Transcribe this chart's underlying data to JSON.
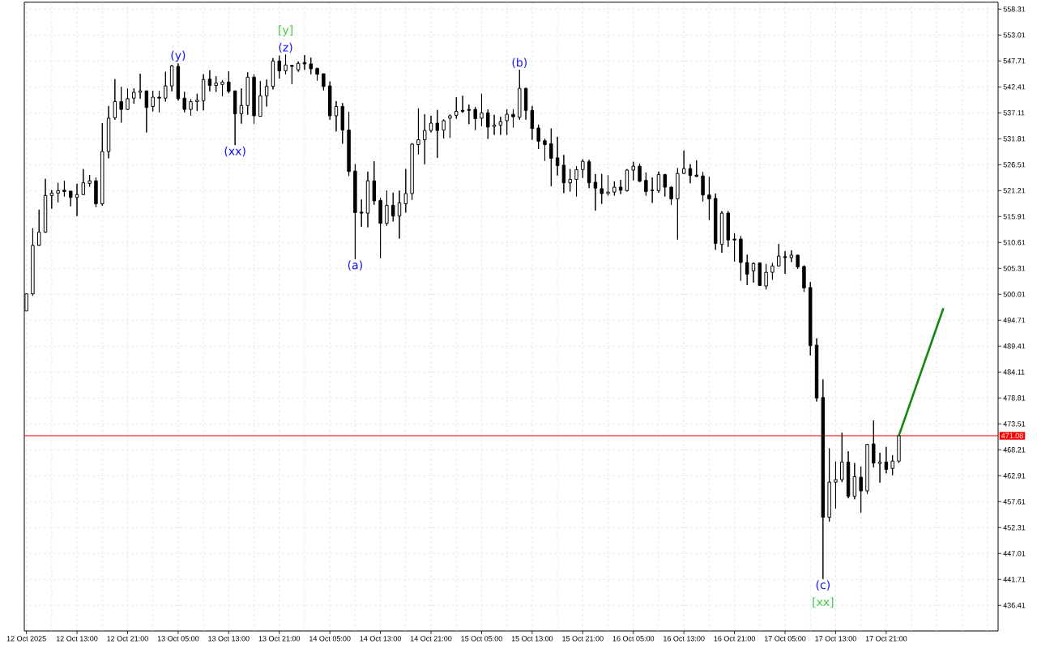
{
  "chart_data": {
    "type": "candlestick",
    "x": [
      "2025-10-12T05:00",
      "2025-10-12T06:00",
      "2025-10-12T07:00",
      "2025-10-12T08:00",
      "2025-10-12T09:00",
      "2025-10-12T10:00",
      "2025-10-12T11:00",
      "2025-10-12T12:00",
      "2025-10-12T13:00",
      "2025-10-12T14:00",
      "2025-10-12T15:00",
      "2025-10-12T16:00",
      "2025-10-12T17:00",
      "2025-10-12T18:00",
      "2025-10-12T19:00",
      "2025-10-12T20:00",
      "2025-10-12T21:00",
      "2025-10-12T22:00",
      "2025-10-12T23:00",
      "2025-10-13T00:00",
      "2025-10-13T01:00",
      "2025-10-13T02:00",
      "2025-10-13T03:00",
      "2025-10-13T04:00",
      "2025-10-13T05:00",
      "2025-10-13T06:00",
      "2025-10-13T07:00",
      "2025-10-13T08:00",
      "2025-10-13T09:00",
      "2025-10-13T10:00",
      "2025-10-13T11:00",
      "2025-10-13T12:00",
      "2025-10-13T13:00",
      "2025-10-13T14:00",
      "2025-10-13T15:00",
      "2025-10-13T16:00",
      "2025-10-13T17:00",
      "2025-10-13T18:00",
      "2025-10-13T19:00",
      "2025-10-13T20:00",
      "2025-10-13T21:00",
      "2025-10-13T22:00",
      "2025-10-13T23:00",
      "2025-10-14T00:00",
      "2025-10-14T01:00",
      "2025-10-14T02:00",
      "2025-10-14T03:00",
      "2025-10-14T04:00",
      "2025-10-14T05:00",
      "2025-10-14T06:00",
      "2025-10-14T07:00",
      "2025-10-14T08:00",
      "2025-10-14T09:00",
      "2025-10-14T10:00",
      "2025-10-14T11:00",
      "2025-10-14T12:00",
      "2025-10-14T13:00",
      "2025-10-14T14:00",
      "2025-10-14T15:00",
      "2025-10-14T16:00",
      "2025-10-14T17:00",
      "2025-10-14T18:00",
      "2025-10-14T19:00",
      "2025-10-14T20:00",
      "2025-10-14T21:00",
      "2025-10-14T22:00",
      "2025-10-14T23:00",
      "2025-10-15T00:00",
      "2025-10-15T01:00",
      "2025-10-15T02:00",
      "2025-10-15T03:00",
      "2025-10-15T04:00",
      "2025-10-15T05:00",
      "2025-10-15T06:00",
      "2025-10-15T07:00",
      "2025-10-15T08:00",
      "2025-10-15T09:00",
      "2025-10-15T10:00",
      "2025-10-15T11:00",
      "2025-10-15T12:00",
      "2025-10-15T13:00",
      "2025-10-15T14:00",
      "2025-10-15T15:00",
      "2025-10-15T16:00",
      "2025-10-15T17:00",
      "2025-10-15T18:00",
      "2025-10-15T19:00",
      "2025-10-15T20:00",
      "2025-10-15T21:00",
      "2025-10-15T22:00",
      "2025-10-15T23:00",
      "2025-10-16T00:00",
      "2025-10-16T01:00",
      "2025-10-16T02:00",
      "2025-10-16T03:00",
      "2025-10-16T04:00",
      "2025-10-16T05:00",
      "2025-10-16T06:00",
      "2025-10-16T07:00",
      "2025-10-16T08:00",
      "2025-10-16T09:00",
      "2025-10-16T10:00",
      "2025-10-16T11:00",
      "2025-10-16T12:00",
      "2025-10-16T13:00",
      "2025-10-16T14:00",
      "2025-10-16T15:00",
      "2025-10-16T16:00",
      "2025-10-16T17:00",
      "2025-10-16T18:00",
      "2025-10-16T19:00",
      "2025-10-16T20:00",
      "2025-10-16T21:00",
      "2025-10-16T22:00",
      "2025-10-16T23:00",
      "2025-10-17T00:00",
      "2025-10-17T01:00",
      "2025-10-17T02:00",
      "2025-10-17T03:00",
      "2025-10-17T04:00",
      "2025-10-17T05:00",
      "2025-10-17T06:00",
      "2025-10-17T07:00",
      "2025-10-17T08:00",
      "2025-10-17T09:00",
      "2025-10-17T10:00",
      "2025-10-17T11:00",
      "2025-10-17T12:00",
      "2025-10-17T13:00",
      "2025-10-17T14:00",
      "2025-10-17T15:00",
      "2025-10-17T16:00",
      "2025-10-17T17:00",
      "2025-10-17T18:00",
      "2025-10-17T19:00",
      "2025-10-17T20:00",
      "2025-10-17T21:00",
      "2025-10-17T22:00",
      "2025-10-17T23:00"
    ],
    "ohlc": [
      [
        496.6,
        500.1,
        496.6,
        500.1
      ],
      [
        500.1,
        513.5,
        499.7,
        510.0
      ],
      [
        510.0,
        517.3,
        509.9,
        512.7
      ],
      [
        512.7,
        523.6,
        512.6,
        520.2
      ],
      [
        520.2,
        521.3,
        517.5,
        520.7
      ],
      [
        520.7,
        522.8,
        518.8,
        521.2
      ],
      [
        521.3,
        523.2,
        520.0,
        521.0
      ],
      [
        521.1,
        521.1,
        518.0,
        519.8
      ],
      [
        519.8,
        522.6,
        516.0,
        520.4
      ],
      [
        520.4,
        525.6,
        520.3,
        522.8
      ],
      [
        522.7,
        524.4,
        522.0,
        523.2
      ],
      [
        523.2,
        523.9,
        517.8,
        518.5
      ],
      [
        518.5,
        535.0,
        518.1,
        529.2
      ],
      [
        529.2,
        538.5,
        527.8,
        536.0
      ],
      [
        536.1,
        544.0,
        535.7,
        539.4
      ],
      [
        539.4,
        542.4,
        535.1,
        537.8
      ],
      [
        537.8,
        542.1,
        537.7,
        540.0
      ],
      [
        540.1,
        542.1,
        539.0,
        541.3
      ],
      [
        541.3,
        545.1,
        540.0,
        541.6
      ],
      [
        541.6,
        541.6,
        533.1,
        538.2
      ],
      [
        538.4,
        541.6,
        537.4,
        540.3
      ],
      [
        540.3,
        541.6,
        537.2,
        540.1
      ],
      [
        540.1,
        545.5,
        539.4,
        542.6
      ],
      [
        542.6,
        546.9,
        541.5,
        546.7
      ],
      [
        546.6,
        547.2,
        539.6,
        540.0
      ],
      [
        540.1,
        541.4,
        537.2,
        537.8
      ],
      [
        537.8,
        539.9,
        536.5,
        539.4
      ],
      [
        539.4,
        541.0,
        537.5,
        539.7
      ],
      [
        539.6,
        545.0,
        537.6,
        543.9
      ],
      [
        544.0,
        545.8,
        541.5,
        542.7
      ],
      [
        542.7,
        544.6,
        541.4,
        543.2
      ],
      [
        542.9,
        543.8,
        540.5,
        543.4
      ],
      [
        543.4,
        545.6,
        541.1,
        541.5
      ],
      [
        541.6,
        541.6,
        530.5,
        536.9
      ],
      [
        536.9,
        542.1,
        534.9,
        538.6
      ],
      [
        538.6,
        545.4,
        536.7,
        544.4
      ],
      [
        544.4,
        545.0,
        534.9,
        536.5
      ],
      [
        536.4,
        543.6,
        536.3,
        540.6
      ],
      [
        540.6,
        543.9,
        538.4,
        542.5
      ],
      [
        542.5,
        548.3,
        541.9,
        547.7
      ],
      [
        547.7,
        548.8,
        544.1,
        545.7
      ],
      [
        545.7,
        549.0,
        545.0,
        546.9
      ],
      [
        546.8,
        546.9,
        543.0,
        546.6
      ],
      [
        545.9,
        547.6,
        545.5,
        547.2
      ],
      [
        547.4,
        548.9,
        545.9,
        547.1
      ],
      [
        547.1,
        548.4,
        545.0,
        546.1
      ],
      [
        546.2,
        546.3,
        543.7,
        545.0
      ],
      [
        545.1,
        545.1,
        541.7,
        542.5
      ],
      [
        542.6,
        543.5,
        535.7,
        536.5
      ],
      [
        536.5,
        539.5,
        533.3,
        538.4
      ],
      [
        538.4,
        539.1,
        530.8,
        533.6
      ],
      [
        533.6,
        537.3,
        524.2,
        525.1
      ],
      [
        525.2,
        526.6,
        507.2,
        516.7
      ],
      [
        516.8,
        519.4,
        513.8,
        516.6
      ],
      [
        516.6,
        525.1,
        513.7,
        523.2
      ],
      [
        523.2,
        527.2,
        518.3,
        519.1
      ],
      [
        519.2,
        519.7,
        507.4,
        514.5
      ],
      [
        514.5,
        521.2,
        514.0,
        518.2
      ],
      [
        518.2,
        520.8,
        514.9,
        516.0
      ],
      [
        516.0,
        521.2,
        511.4,
        518.7
      ],
      [
        518.5,
        525.6,
        516.7,
        520.6
      ],
      [
        520.6,
        530.9,
        519.3,
        530.7
      ],
      [
        530.6,
        538.0,
        528.6,
        531.6
      ],
      [
        531.6,
        536.8,
        526.6,
        533.5
      ],
      [
        533.5,
        536.5,
        533.1,
        535.0
      ],
      [
        535.0,
        537.7,
        527.9,
        533.5
      ],
      [
        533.6,
        535.8,
        531.9,
        535.5
      ],
      [
        536.0,
        536.8,
        532.0,
        536.5
      ],
      [
        536.6,
        540.3,
        535.9,
        537.4
      ],
      [
        537.6,
        540.6,
        537.1,
        537.4
      ],
      [
        537.8,
        538.8,
        534.8,
        537.6
      ],
      [
        537.8,
        538.3,
        533.6,
        535.9
      ],
      [
        536.0,
        541.0,
        534.4,
        537.1
      ],
      [
        537.1,
        537.8,
        531.8,
        534.2
      ],
      [
        534.3,
        536.7,
        532.6,
        534.6
      ],
      [
        534.6,
        536.3,
        532.6,
        535.3
      ],
      [
        535.5,
        537.8,
        532.6,
        536.8
      ],
      [
        536.8,
        537.8,
        534.1,
        536.3
      ],
      [
        536.2,
        545.9,
        535.7,
        542.1
      ],
      [
        542.1,
        542.2,
        535.7,
        537.6
      ],
      [
        537.6,
        538.5,
        531.6,
        533.9
      ],
      [
        534.0,
        534.7,
        529.7,
        531.3
      ],
      [
        531.4,
        531.8,
        527.3,
        530.6
      ],
      [
        530.8,
        533.9,
        522.1,
        527.8
      ],
      [
        527.9,
        532.2,
        524.3,
        526.3
      ],
      [
        526.4,
        528.5,
        520.7,
        522.8
      ],
      [
        522.8,
        525.6,
        521.0,
        523.5
      ],
      [
        523.5,
        526.2,
        520.0,
        525.5
      ],
      [
        525.5,
        527.6,
        523.8,
        527.2
      ],
      [
        527.1,
        527.5,
        521.7,
        522.8
      ],
      [
        522.9,
        524.6,
        517.1,
        521.7
      ],
      [
        521.6,
        524.6,
        518.5,
        520.6
      ],
      [
        520.6,
        524.3,
        520.2,
        520.9
      ],
      [
        520.9,
        523.1,
        520.2,
        521.9
      ],
      [
        521.9,
        523.4,
        520.5,
        521.3
      ],
      [
        521.2,
        525.6,
        521.0,
        525.4
      ],
      [
        525.4,
        527.1,
        523.3,
        526.2
      ],
      [
        526.2,
        526.7,
        523.0,
        523.1
      ],
      [
        523.3,
        524.9,
        520.2,
        521.0
      ],
      [
        521.3,
        523.9,
        518.7,
        521.2
      ],
      [
        521.2,
        525.1,
        520.8,
        524.5
      ],
      [
        524.5,
        524.6,
        520.0,
        521.9
      ],
      [
        521.9,
        522.1,
        518.3,
        519.5
      ],
      [
        519.5,
        525.8,
        511.2,
        524.7
      ],
      [
        524.7,
        529.4,
        524.6,
        525.7
      ],
      [
        525.7,
        526.6,
        522.7,
        524.3
      ],
      [
        524.4,
        527.4,
        524.0,
        524.1
      ],
      [
        524.2,
        525.0,
        519.0,
        520.3
      ],
      [
        520.3,
        524.0,
        515.2,
        519.5
      ],
      [
        519.6,
        520.6,
        509.1,
        510.4
      ],
      [
        510.2,
        517.0,
        508.5,
        516.6
      ],
      [
        516.6,
        517.0,
        509.7,
        511.1
      ],
      [
        511.3,
        512.5,
        506.7,
        511.1
      ],
      [
        511.3,
        511.9,
        502.8,
        506.5
      ],
      [
        506.5,
        508.1,
        501.9,
        504.1
      ],
      [
        504.8,
        506.5,
        502.4,
        506.3
      ],
      [
        506.4,
        506.5,
        501.7,
        501.8
      ],
      [
        501.7,
        506.2,
        501.0,
        504.5
      ],
      [
        504.5,
        506.4,
        503.0,
        505.8
      ],
      [
        505.8,
        510.3,
        505.7,
        507.8
      ],
      [
        507.7,
        508.8,
        504.2,
        507.5
      ],
      [
        507.5,
        509.0,
        506.6,
        508.0
      ],
      [
        508.0,
        508.1,
        505.2,
        505.6
      ],
      [
        505.7,
        505.9,
        500.5,
        501.3
      ],
      [
        501.4,
        502.5,
        487.5,
        489.5
      ],
      [
        489.6,
        491.0,
        478.1,
        478.8
      ],
      [
        478.9,
        482.6,
        441.8,
        454.4
      ],
      [
        454.4,
        468.5,
        453.5,
        461.6
      ],
      [
        461.6,
        465.8,
        456.2,
        462.1
      ],
      [
        462.1,
        471.7,
        461.6,
        465.7
      ],
      [
        465.7,
        467.9,
        458.3,
        458.7
      ],
      [
        458.7,
        465.5,
        458.1,
        462.7
      ],
      [
        462.6,
        464.8,
        455.4,
        459.8
      ],
      [
        459.8,
        469.4,
        459.2,
        469.3
      ],
      [
        469.4,
        474.2,
        464.6,
        465.5
      ],
      [
        465.4,
        467.6,
        461.5,
        465.7
      ],
      [
        465.7,
        468.8,
        463.4,
        464.2
      ],
      [
        464.4,
        467.1,
        463.0,
        465.9
      ],
      [
        465.9,
        471.08,
        465.5,
        471.08
      ]
    ],
    "series": [
      {
        "type": "line",
        "color": "#108a10",
        "x": [
          "2025-10-17T23:00",
          "2025-10-18T06:00"
        ],
        "values": [
          471.1,
          497.0
        ]
      }
    ],
    "xlim": [
      "2025-10-12T04:40",
      "2025-10-18T14:42"
    ],
    "ylim": [
      431.16,
      559.73
    ],
    "xticks": [
      {
        "value": "2025-10-12T05:00",
        "label": "12 Oct 2025"
      },
      {
        "value": "2025-10-12T09:00",
        "label": null
      },
      {
        "value": "2025-10-12T13:00",
        "label": "12 Oct 13:00"
      },
      {
        "value": "2025-10-12T17:00",
        "label": null
      },
      {
        "value": "2025-10-12T21:00",
        "label": "12 Oct 21:00"
      },
      {
        "value": "2025-10-13T01:00",
        "label": null
      },
      {
        "value": "2025-10-13T05:00",
        "label": "13 Oct 05:00"
      },
      {
        "value": "2025-10-13T09:00",
        "label": null
      },
      {
        "value": "2025-10-13T13:00",
        "label": "13 Oct 13:00"
      },
      {
        "value": "2025-10-13T17:00",
        "label": null
      },
      {
        "value": "2025-10-13T21:00",
        "label": "13 Oct 21:00"
      },
      {
        "value": "2025-10-14T01:00",
        "label": null
      },
      {
        "value": "2025-10-14T05:00",
        "label": "14 Oct 05:00"
      },
      {
        "value": "2025-10-14T09:00",
        "label": null
      },
      {
        "value": "2025-10-14T13:00",
        "label": "14 Oct 13:00"
      },
      {
        "value": "2025-10-14T17:00",
        "label": null
      },
      {
        "value": "2025-10-14T21:00",
        "label": "14 Oct 21:00"
      },
      {
        "value": "2025-10-15T01:00",
        "label": null
      },
      {
        "value": "2025-10-15T05:00",
        "label": "15 Oct 05:00"
      },
      {
        "value": "2025-10-15T09:00",
        "label": null
      },
      {
        "value": "2025-10-15T13:00",
        "label": "15 Oct 13:00"
      },
      {
        "value": "2025-10-15T17:00",
        "label": null
      },
      {
        "value": "2025-10-15T21:00",
        "label": "15 Oct 21:00"
      },
      {
        "value": "2025-10-16T01:00",
        "label": null
      },
      {
        "value": "2025-10-16T05:00",
        "label": "16 Oct 05:00"
      },
      {
        "value": "2025-10-16T09:00",
        "label": null
      },
      {
        "value": "2025-10-16T13:00",
        "label": "16 Oct 13:00"
      },
      {
        "value": "2025-10-16T17:00",
        "label": null
      },
      {
        "value": "2025-10-16T21:00",
        "label": "16 Oct 21:00"
      },
      {
        "value": "2025-10-17T01:00",
        "label": null
      },
      {
        "value": "2025-10-17T05:00",
        "label": "17 Oct 05:00"
      },
      {
        "value": "2025-10-17T09:00",
        "label": null
      },
      {
        "value": "2025-10-17T13:00",
        "label": "17 Oct 13:00"
      },
      {
        "value": "2025-10-17T17:00",
        "label": null
      },
      {
        "value": "2025-10-17T21:00",
        "label": "17 Oct 21:00"
      },
      {
        "value": "2025-10-18T01:00",
        "label": null
      },
      {
        "value": "2025-10-18T05:00",
        "label": null
      },
      {
        "value": "2025-10-18T09:00",
        "label": null
      },
      {
        "value": "2025-10-18T13:00",
        "label": null
      }
    ],
    "yticks": [
      436.41,
      441.71,
      447.01,
      452.31,
      457.61,
      462.91,
      468.21,
      473.51,
      478.81,
      484.11,
      489.41,
      494.71,
      500.01,
      505.31,
      510.61,
      515.91,
      521.21,
      526.51,
      531.81,
      537.11,
      542.41,
      547.71,
      553.01,
      558.31
    ],
    "grid": true,
    "ref_lines": [
      {
        "axis": "y",
        "value": 471.08,
        "label": "471.08",
        "color": "#ff0000"
      }
    ],
    "annotations": [
      {
        "text": "(y)",
        "x": "2025-10-13T05:00",
        "y": 547.2
      },
      {
        "text": "(z)",
        "x": "2025-10-13T22:00",
        "y": 549.0
      },
      {
        "text": "[y]",
        "x": "2025-10-13T22:00",
        "y": 549.0
      },
      {
        "text": "(xx)",
        "x": "2025-10-13T14:00",
        "y": 530.5
      },
      {
        "text": "(a)",
        "x": "2025-10-14T09:00",
        "y": 507.2
      },
      {
        "text": "(b)",
        "x": "2025-10-15T11:00",
        "y": 545.9
      },
      {
        "text": "(c)",
        "x": "2025-10-17T11:00",
        "y": 441.8
      },
      {
        "text": "[xx]",
        "x": "2025-10-17T11:00",
        "y": 441.8
      }
    ]
  }
}
